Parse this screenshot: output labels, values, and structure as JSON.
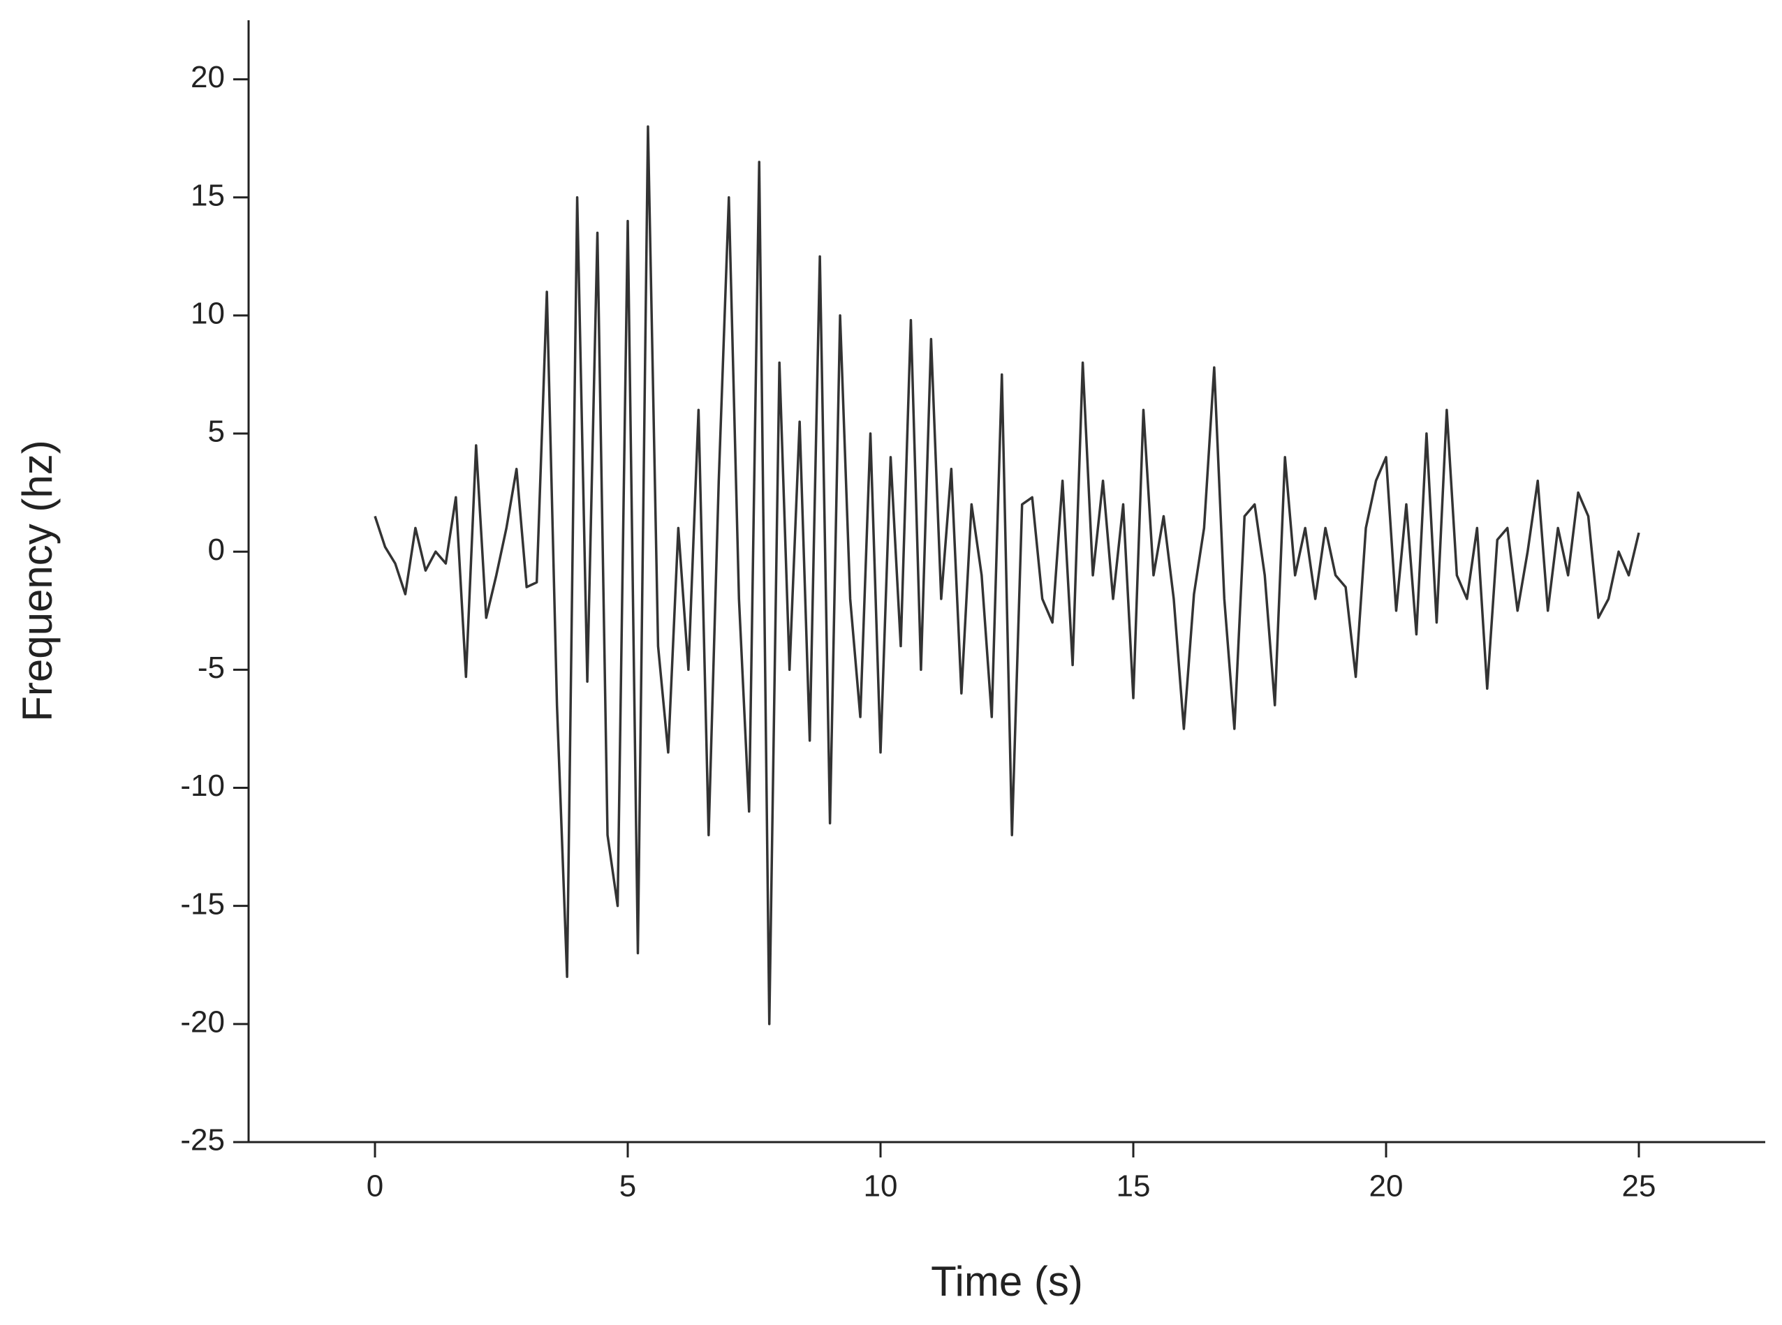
{
  "chart_data": {
    "type": "line",
    "x_label": "Time (s)",
    "y_label": "Frequency (hz)",
    "x": [
      0,
      0.2,
      0.4,
      0.6,
      0.8,
      1.0,
      1.2,
      1.4,
      1.6,
      1.8,
      2.0,
      2.2,
      2.4,
      2.6,
      2.8,
      3.0,
      3.2,
      3.4,
      3.6,
      3.8,
      4.0,
      4.2,
      4.4,
      4.6,
      4.8,
      5.0,
      5.2,
      5.4,
      5.6,
      5.8,
      6.0,
      6.2,
      6.4,
      6.6,
      6.8,
      7.0,
      7.2,
      7.4,
      7.6,
      7.8,
      8.0,
      8.2,
      8.4,
      8.6,
      8.8,
      9.0,
      9.2,
      9.4,
      9.6,
      9.8,
      10.0,
      10.2,
      10.4,
      10.6,
      10.8,
      11.0,
      11.2,
      11.4,
      11.6,
      11.8,
      12.0,
      12.2,
      12.4,
      12.6,
      12.8,
      13.0,
      13.2,
      13.4,
      13.6,
      13.8,
      14.0,
      14.2,
      14.4,
      14.6,
      14.8,
      15.0,
      15.2,
      15.4,
      15.6,
      15.8,
      16.0,
      16.2,
      16.4,
      16.6,
      16.8,
      17.0,
      17.2,
      17.4,
      17.6,
      17.8,
      18.0,
      18.2,
      18.4,
      18.6,
      18.8,
      19.0,
      19.2,
      19.4,
      19.6,
      19.8,
      20.0,
      20.2,
      20.4,
      20.6,
      20.8,
      21.0,
      21.2,
      21.4,
      21.6,
      21.8,
      22.0,
      22.2,
      22.4,
      22.6,
      22.8,
      23.0,
      23.2,
      23.4,
      23.6,
      23.8,
      24.0,
      24.2,
      24.4,
      24.6,
      24.8,
      25.0
    ],
    "series": [
      {
        "color": "#333333",
        "values": [
          1.5,
          0.2,
          -0.5,
          -1.8,
          1,
          -0.8,
          0,
          -0.5,
          2.3,
          -5.3,
          4.5,
          -2.8,
          -1,
          1,
          3.5,
          -1.5,
          -1.3,
          11,
          -6.5,
          -18,
          15,
          -5.5,
          13.5,
          -12,
          -15,
          14,
          -17,
          18,
          -4,
          -8.5,
          1,
          -5,
          6,
          -12,
          3,
          15,
          -2,
          -11,
          16.5,
          -20,
          8,
          -5,
          5.5,
          -8,
          12.5,
          -11.5,
          10,
          -2,
          -7,
          5,
          -8.5,
          4,
          -4,
          9.8,
          -5,
          9,
          -2,
          3.5,
          -6,
          2,
          -1,
          -7,
          7.5,
          -12,
          2,
          2.3,
          -2,
          -3,
          3,
          -4.8,
          8,
          -1,
          3,
          -2,
          2,
          -6.2,
          6,
          -1,
          1.5,
          -2,
          -7.5,
          -1.8,
          1,
          7.8,
          -2,
          -7.5,
          1.5,
          2,
          -1,
          -6.5,
          4,
          -1,
          1,
          -2,
          1,
          -1,
          -1.5,
          -5.3,
          1,
          3,
          4,
          -2.5,
          2,
          -3.5,
          5,
          -3,
          6,
          -1,
          -2,
          1,
          -5.8,
          0.5,
          1,
          -2.5,
          0,
          3,
          -2.5,
          1,
          -1,
          2.5,
          1.5,
          -2.8,
          -2,
          0,
          -1,
          0.8
        ]
      }
    ],
    "xlim": [
      -2.5,
      27.5
    ],
    "xticks": [
      0,
      5,
      10,
      15,
      20,
      25
    ],
    "ylim": [
      -25,
      22.5
    ],
    "yticks": [
      -25,
      -20,
      -15,
      -10,
      -5,
      0,
      5,
      10,
      15,
      20
    ]
  }
}
